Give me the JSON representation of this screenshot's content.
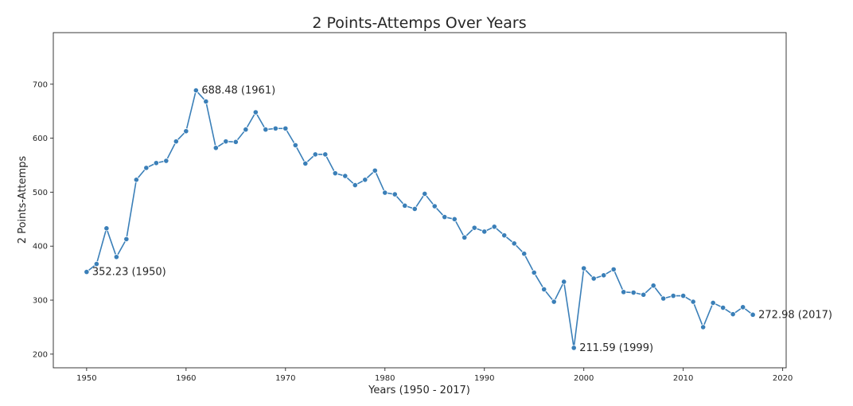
{
  "chart_data": {
    "type": "line",
    "title": "2 Points-Attemps Over Years",
    "xlabel": "Years (1950 - 2017)",
    "ylabel": "2 Points-Attemps",
    "xlim": [
      1946.65,
      2020.35
    ],
    "ylim": [
      174.7,
      795.5
    ],
    "xticks": [
      1950,
      1960,
      1970,
      1980,
      1990,
      2000,
      2010,
      2020
    ],
    "yticks": [
      200,
      300,
      400,
      500,
      600,
      700
    ],
    "grid": false,
    "legend": "none",
    "color": "#3a7fb8",
    "x": [
      1950,
      1951,
      1952,
      1953,
      1954,
      1955,
      1956,
      1957,
      1958,
      1959,
      1960,
      1961,
      1962,
      1963,
      1964,
      1965,
      1966,
      1967,
      1968,
      1969,
      1970,
      1971,
      1972,
      1973,
      1974,
      1975,
      1976,
      1977,
      1978,
      1979,
      1980,
      1981,
      1982,
      1983,
      1984,
      1985,
      1986,
      1987,
      1988,
      1989,
      1990,
      1991,
      1992,
      1993,
      1994,
      1995,
      1996,
      1997,
      1998,
      1999,
      2000,
      2001,
      2002,
      2003,
      2004,
      2005,
      2006,
      2007,
      2008,
      2009,
      2010,
      2011,
      2012,
      2013,
      2014,
      2015,
      2016,
      2017
    ],
    "values": [
      352.23,
      367,
      433,
      380,
      413,
      523,
      545,
      554,
      558,
      594,
      613,
      688.48,
      668,
      582,
      594,
      593,
      616,
      648,
      616,
      618,
      618,
      587,
      553,
      570,
      570,
      535,
      530,
      513,
      523,
      540,
      499,
      496,
      475,
      469,
      497,
      474,
      454,
      450,
      416,
      434,
      427,
      436,
      420,
      405,
      386,
      351,
      320,
      297,
      334,
      211.59,
      359,
      340,
      346,
      357,
      315,
      314,
      310,
      327,
      303,
      308,
      308,
      297,
      250,
      295,
      286,
      274,
      287,
      272.98
    ],
    "annotations": [
      {
        "text": "352.23 (1950)",
        "x": 1950,
        "y": 352.23
      },
      {
        "text": "688.48 (1961)",
        "x": 1961,
        "y": 688.48
      },
      {
        "text": "211.59 (1999)",
        "x": 1999,
        "y": 211.59
      },
      {
        "text": "272.98 (2017)",
        "x": 2017,
        "y": 272.98
      }
    ]
  }
}
